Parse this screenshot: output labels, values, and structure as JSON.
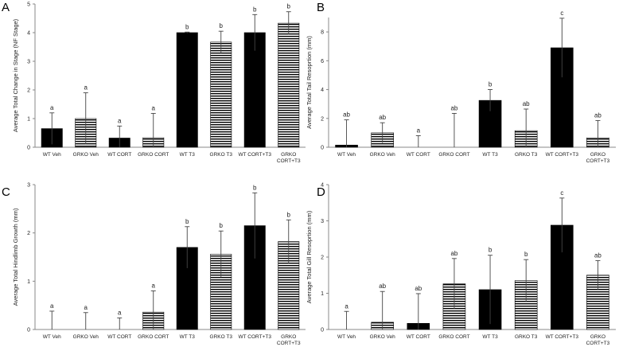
{
  "chart_data": [
    {
      "type": "bar",
      "panel": "A",
      "ylabel": "Average Total Change in Stage (NF Stage)",
      "ylim": [
        0,
        5
      ],
      "yticks": [
        0,
        1,
        2,
        3,
        4,
        5
      ],
      "categories": [
        "WT Veh",
        "GRKO Veh",
        "WT CORT",
        "GRKO CORT",
        "WT T3",
        "GRKO T3",
        "WT CORT+T3",
        "GRKO CORT+T3"
      ],
      "values": [
        0.65,
        1.0,
        0.32,
        0.33,
        4.0,
        3.67,
        4.0,
        4.33
      ],
      "errors": [
        0.55,
        0.9,
        0.42,
        0.85,
        0.02,
        0.38,
        0.63,
        0.4
      ],
      "significance": [
        "a",
        "a",
        "a",
        "a",
        "b",
        "b",
        "b",
        "b"
      ],
      "fills": [
        "solid",
        "striped",
        "solid",
        "striped",
        "solid",
        "striped",
        "solid",
        "striped"
      ]
    },
    {
      "type": "bar",
      "panel": "B",
      "ylabel": "Average Total Tail Resoprtion (mm)",
      "ylim": [
        0,
        9
      ],
      "yticks": [
        0,
        2,
        4,
        6,
        8
      ],
      "categories": [
        "WT Veh",
        "GRKO Veh",
        "WT CORT",
        "GRKO CORT",
        "WT T3",
        "GRKO T3",
        "WT CORT+T3",
        "GRKO CORT+T3"
      ],
      "values": [
        0.15,
        1.0,
        0.0,
        0.0,
        3.25,
        1.15,
        6.9,
        0.65
      ],
      "errors": [
        1.75,
        0.7,
        0.8,
        2.35,
        0.75,
        1.5,
        2.05,
        1.2
      ],
      "significance": [
        "ab",
        "ab",
        "a",
        "ab",
        "b",
        "ab",
        "c",
        "ab"
      ],
      "fills": [
        "solid",
        "striped",
        "solid",
        "striped",
        "solid",
        "striped",
        "solid",
        "striped"
      ]
    },
    {
      "type": "bar",
      "panel": "C",
      "ylabel": "Average Total Hindlimb Growth (mm)",
      "ylim": [
        0,
        3
      ],
      "yticks": [
        0,
        1,
        2,
        3
      ],
      "categories": [
        "WT Veh",
        "GRKO Veh",
        "WT CORT",
        "GRKO CORT",
        "WT T3",
        "GRKO T3",
        "WT CORT+T3",
        "GRKO CORT+T3"
      ],
      "values": [
        0.0,
        0.0,
        0.0,
        0.36,
        1.7,
        1.56,
        2.15,
        1.82
      ],
      "errors": [
        0.38,
        0.35,
        0.24,
        0.44,
        0.43,
        0.48,
        0.68,
        0.45
      ],
      "significance": [
        "a",
        "a",
        "a",
        "a",
        "b",
        "b",
        "b",
        "b"
      ],
      "fills": [
        "solid",
        "striped",
        "solid",
        "striped",
        "solid",
        "striped",
        "solid",
        "striped"
      ]
    },
    {
      "type": "bar",
      "panel": "D",
      "ylabel": "Average Total Gill Resoprtion (mm)",
      "ylim": [
        0,
        4
      ],
      "yticks": [
        0,
        1,
        2,
        3,
        4
      ],
      "categories": [
        "WT Veh",
        "GRKO Veh",
        "WT CORT",
        "GRKO CORT",
        "WT T3",
        "GRKO T3",
        "WT CORT+T3",
        "GRKO CORT+T3"
      ],
      "values": [
        0.0,
        0.2,
        0.17,
        1.26,
        1.1,
        1.35,
        2.88,
        1.5
      ],
      "errors": [
        0.5,
        0.85,
        0.82,
        0.7,
        0.95,
        0.58,
        0.75,
        0.4
      ],
      "significance": [
        "a",
        "ab",
        "ab",
        "ab",
        "b",
        "b",
        "c",
        "ab"
      ],
      "fills": [
        "solid",
        "striped",
        "solid",
        "striped",
        "solid",
        "striped",
        "solid",
        "striped"
      ]
    }
  ]
}
